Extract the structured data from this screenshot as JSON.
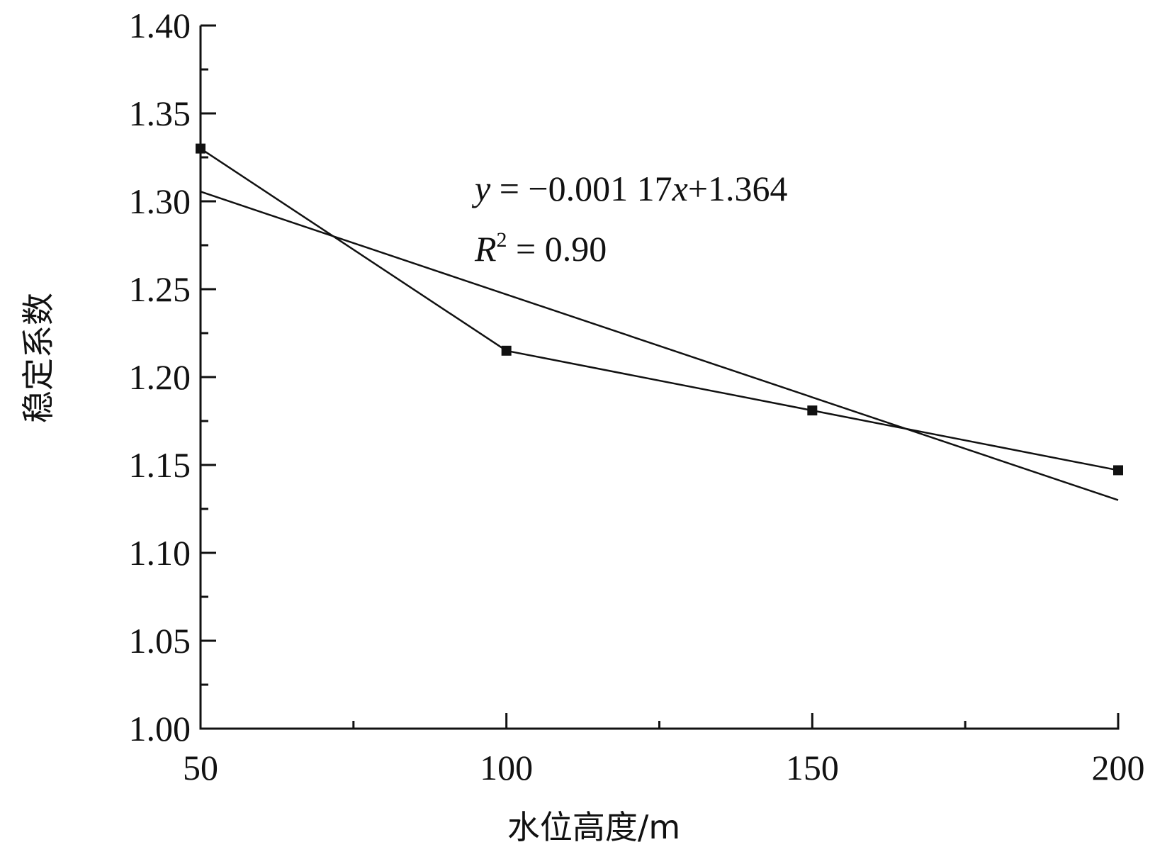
{
  "chart_data": {
    "type": "line",
    "xlabel": "水位高度/m",
    "ylabel": "稳定系数",
    "xlim": [
      50,
      200
    ],
    "ylim": [
      1.0,
      1.4
    ],
    "x_ticks": [
      "50",
      "100",
      "150",
      "200"
    ],
    "y_ticks": [
      "1.00",
      "1.05",
      "1.10",
      "1.15",
      "1.20",
      "1.25",
      "1.30",
      "1.35",
      "1.40"
    ],
    "grid": false,
    "series": [
      {
        "x": [
          50,
          100,
          150,
          200
        ],
        "values": [
          1.33,
          1.215,
          1.181,
          1.147
        ],
        "marker": "square"
      }
    ],
    "trendline": {
      "slope": -0.00117,
      "intercept": 1.364,
      "x_range": [
        50,
        200
      ]
    },
    "annotations": {
      "equation": {
        "y": "y",
        "eq": " = −0.001 17",
        "x": "x",
        "rest": "+1.364"
      },
      "r2": {
        "r": "R",
        "sup": "2",
        "rest": " = 0.90"
      }
    }
  }
}
